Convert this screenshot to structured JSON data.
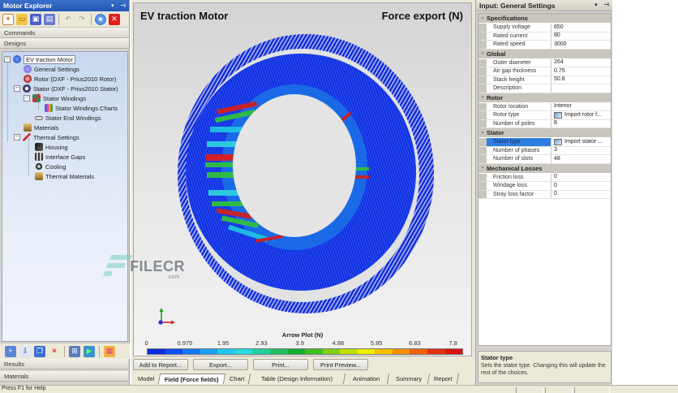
{
  "explorer": {
    "title": "Motor Explorer",
    "title_controls": [
      "▾",
      "⊣"
    ],
    "toolbar_icons": [
      "new-icon",
      "open-icon",
      "save-icon",
      "save-as-icon",
      "undo-icon",
      "redo-icon",
      "help-icon",
      "close-icon"
    ],
    "sections": {
      "commands": "Commands",
      "designs": "Designs",
      "results": "Results",
      "materials": "Materials"
    },
    "tree": [
      {
        "label": "EV traction Motor",
        "level": 0,
        "toggle": "−",
        "icon": "motor-icon",
        "color": "#1b3fb8",
        "selected": true
      },
      {
        "label": "General Settings",
        "level": 1,
        "icon": "settings-icon",
        "color": "#6a5acd"
      },
      {
        "label": "Rotor (DXF - Prius2010 Rotor)",
        "level": 1,
        "icon": "rotor-icon",
        "color": "#b22222"
      },
      {
        "label": "Stator (DXF - Prius2010 Stator)",
        "level": 1,
        "toggle": "−",
        "icon": "stator-icon",
        "color": "#3a3a6a"
      },
      {
        "label": "Stator Windings",
        "level": 2,
        "toggle": "−",
        "icon": "windings-icon",
        "color": "#2e8b57"
      },
      {
        "label": "Stator Windings Charts",
        "level": 3,
        "icon": "chart-icon",
        "color": "#c040c0"
      },
      {
        "label": "Stator End Windings",
        "level": 2,
        "icon": "end-windings-icon",
        "color": "#909090"
      },
      {
        "label": "Materials",
        "level": 1,
        "icon": "materials-icon",
        "color": "#b8862a"
      },
      {
        "label": "Thermal Settings",
        "level": 1,
        "toggle": "−",
        "icon": "thermal-icon",
        "color": "#d03030"
      },
      {
        "label": "Housing",
        "level": 2,
        "icon": "housing-icon",
        "color": "#303030"
      },
      {
        "label": "Interface Gaps",
        "level": 2,
        "icon": "interface-gaps-icon",
        "color": "#505050"
      },
      {
        "label": "Cooling",
        "level": 2,
        "icon": "cooling-icon",
        "color": "#404040"
      },
      {
        "label": "Thermal Materials",
        "level": 2,
        "icon": "thermal-materials-icon",
        "color": "#b8862a"
      }
    ],
    "bottom_toolbar_icons": [
      "add-design-icon",
      "import-icon",
      "duplicate-icon",
      "delete-icon",
      "compare-icon",
      "solve-icon",
      "report-icon"
    ]
  },
  "view": {
    "title_left": "EV traction Motor",
    "title_right": "Force export (N)",
    "legend": {
      "title": "Arrow Plot (N)",
      "ticks": [
        "0",
        "0.975",
        "1.95",
        "2.93",
        "3.9",
        "4.88",
        "5.85",
        "6.83",
        "7.8"
      ],
      "colors": [
        "#0a2be0",
        "#0d4cf0",
        "#1478f5",
        "#1aa0f5",
        "#20c8f0",
        "#22e0e0",
        "#20d0a0",
        "#20c060",
        "#10b030",
        "#40c020",
        "#80d010",
        "#c0e000",
        "#f0f000",
        "#f8c000",
        "#f89000",
        "#f06000",
        "#e83010",
        "#e01010"
      ]
    },
    "buttons": [
      "Add to Report...",
      "Export...",
      "Print...",
      "Print Preview..."
    ],
    "tabs": [
      {
        "label": "Model",
        "active": false
      },
      {
        "label": "Field (Force fields)",
        "active": true
      },
      {
        "label": "Chart",
        "active": false
      },
      {
        "label": "Table (Design Information)",
        "active": false
      },
      {
        "label": "Animation",
        "active": false
      },
      {
        "label": "Summary",
        "active": false
      },
      {
        "label": "Report",
        "active": false
      }
    ]
  },
  "properties": {
    "title": "Input: General Settings",
    "title_controls": [
      "▾",
      "⊣"
    ],
    "categories": [
      {
        "name": "Specifications",
        "rows": [
          {
            "name": "Supply voltage",
            "value": "650"
          },
          {
            "name": "Rated current",
            "value": "80"
          },
          {
            "name": "Rated speed",
            "value": "3000"
          }
        ]
      },
      {
        "name": "Global",
        "rows": [
          {
            "name": "Outer diameter",
            "value": "264"
          },
          {
            "name": "Air gap thickness",
            "value": "0.75"
          },
          {
            "name": "Stack height",
            "value": "50.8"
          },
          {
            "name": "Description",
            "value": ""
          }
        ]
      },
      {
        "name": "Rotor",
        "rows": [
          {
            "name": "Rotor location",
            "value": "Interior"
          },
          {
            "name": "Rotor type",
            "value": "Import rotor f...",
            "icon": true
          },
          {
            "name": "Number of poles",
            "value": "8"
          }
        ]
      },
      {
        "name": "Stator",
        "rows": [
          {
            "name": "Stator type",
            "value": "Import stator ...",
            "icon": true,
            "selected": true
          },
          {
            "name": "Number of phases",
            "value": "3"
          },
          {
            "name": "Number of slots",
            "value": "48"
          }
        ]
      },
      {
        "name": "Mechanical Losses",
        "rows": [
          {
            "name": "Friction loss",
            "value": "0"
          },
          {
            "name": "Windage loss",
            "value": "0"
          },
          {
            "name": "Stray loss factor",
            "value": "0"
          }
        ]
      }
    ],
    "help": {
      "title": "Stator type",
      "description": "Sets the stator type. Changing this will update the rest of the choices."
    }
  },
  "statusbar": {
    "text": "Press F1 for Help"
  },
  "watermark": {
    "text": "FILECR",
    "sub": ".com"
  }
}
